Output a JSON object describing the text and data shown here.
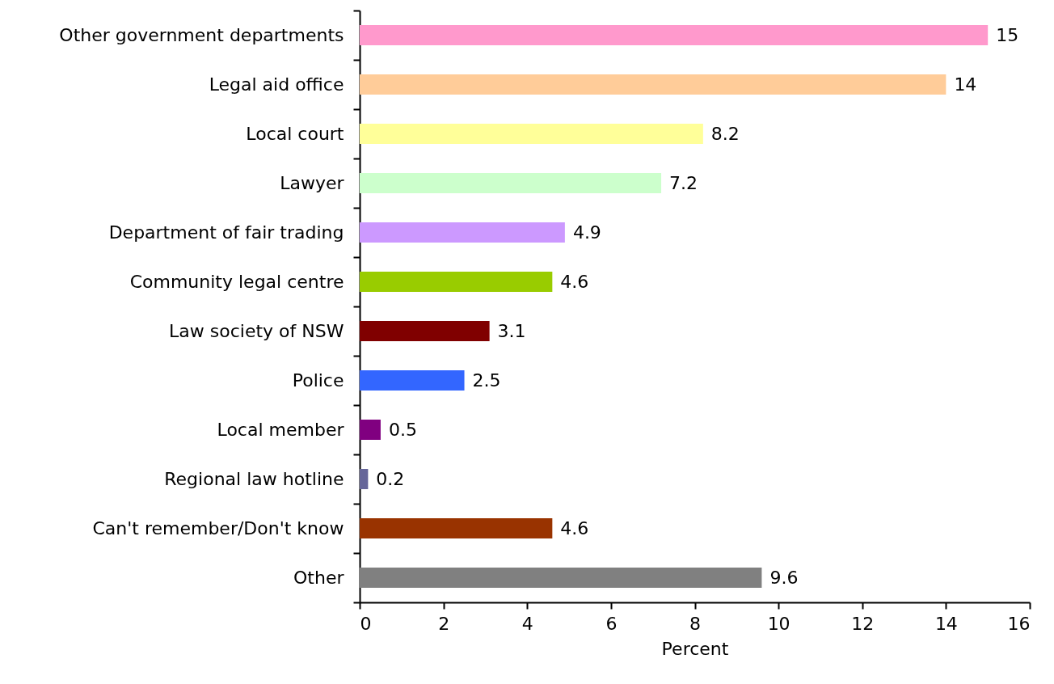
{
  "chart_data": {
    "type": "bar",
    "orientation": "horizontal",
    "xlabel": "Percent",
    "categories": [
      "Other government departments",
      "Legal aid office",
      "Local court",
      "Lawyer",
      "Department of fair trading",
      "Community legal centre",
      "Law society of NSW",
      "Police",
      "Local member",
      "Regional law hotline",
      "Can't remember/Don't know",
      "Other"
    ],
    "values": [
      15,
      14,
      8.2,
      7.2,
      4.9,
      4.6,
      3.1,
      2.5,
      0.5,
      0.2,
      4.6,
      9.6
    ],
    "colors": [
      "#ff99cc",
      "#ffcc99",
      "#ffff99",
      "#ccffcc",
      "#cc99ff",
      "#99cc00",
      "#800000",
      "#3366ff",
      "#800080",
      "#666699",
      "#993300",
      "#808080"
    ],
    "xlim": [
      0,
      16
    ],
    "xticks": [
      0,
      2,
      4,
      6,
      8,
      10,
      12,
      14,
      16
    ],
    "data_labels": true,
    "grid": false
  }
}
